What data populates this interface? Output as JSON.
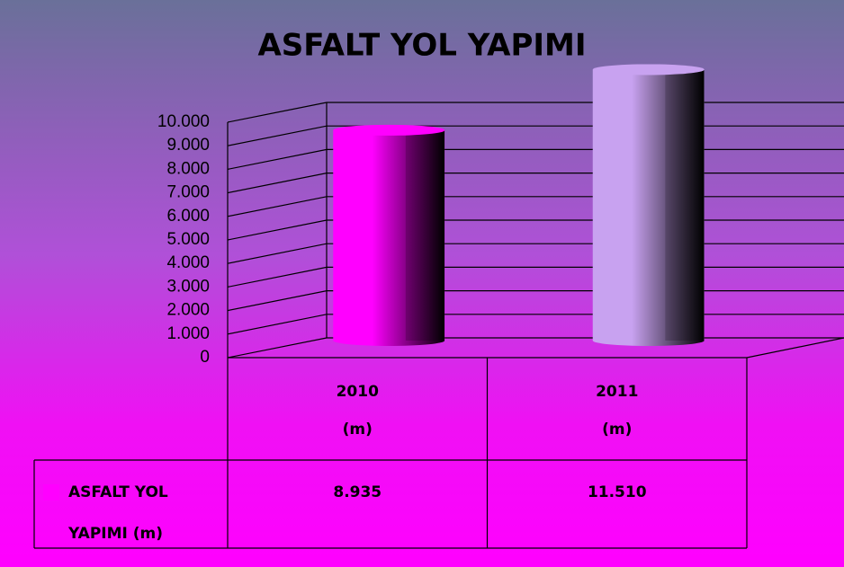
{
  "chart_data": {
    "type": "bar3d",
    "title": "ASFALT YOL YAPIMI",
    "categories": [
      "2010\n(m)",
      "2011\n(m)"
    ],
    "series": [
      {
        "name": "ASFALT YOL\nYAPIMI (m)",
        "color": "#ff00ff",
        "values": [
          8935,
          11510
        ],
        "value_labels": [
          "8.935",
          "11.510"
        ]
      }
    ],
    "colors": [
      "#ff00ff",
      "#c8a2f0"
    ],
    "ylim": [
      0,
      10000
    ],
    "yticks": [
      0,
      {
        "value": 1000,
        "label": "1.000"
      },
      {
        "value": 2000,
        "label": "2.000"
      },
      {
        "value": 3000,
        "label": "3.000"
      },
      {
        "value": 4000,
        "label": "4.000"
      },
      {
        "value": 5000,
        "label": "5.000"
      },
      {
        "value": 6000,
        "label": "6.000"
      },
      {
        "value": 7000,
        "label": "7.000"
      },
      {
        "value": 8000,
        "label": "8.000"
      },
      {
        "value": 9000,
        "label": "9.000"
      },
      {
        "value": 10000,
        "label": "10.000"
      }
    ],
    "grid": true
  }
}
